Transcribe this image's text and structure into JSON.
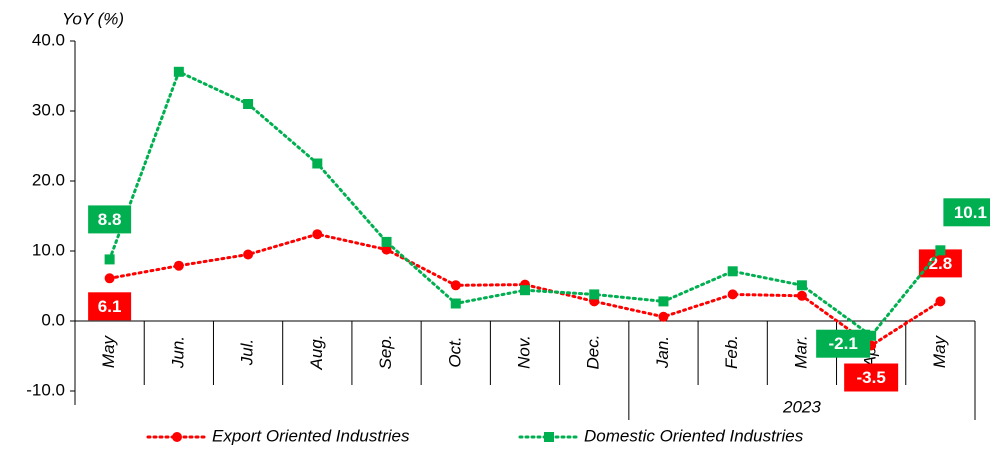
{
  "chart_data": {
    "type": "line",
    "y_label": "YoY (%)",
    "categories": [
      "May",
      "Jun.",
      "Jul.",
      "Aug.",
      "Sep.",
      "Oct.",
      "Nov.",
      "Dec.",
      "Jan.",
      "Feb.",
      "Mar.",
      "Apr.",
      "May"
    ],
    "group_label": "2023",
    "series": [
      {
        "name": "Export Oriented Industries",
        "color": "#ff0000",
        "marker": "circle",
        "values": [
          6.1,
          7.9,
          9.5,
          12.4,
          10.2,
          5.1,
          5.2,
          2.8,
          0.6,
          3.8,
          3.6,
          -3.5,
          2.8
        ],
        "value_labels": [
          "6.1",
          null,
          null,
          null,
          null,
          null,
          null,
          null,
          null,
          null,
          null,
          "-3.5",
          "2.8"
        ]
      },
      {
        "name": "Domestic Oriented Industries",
        "color": "#00b050",
        "marker": "square",
        "values": [
          8.8,
          35.6,
          31.0,
          22.5,
          11.3,
          2.5,
          4.4,
          3.8,
          2.8,
          7.1,
          5.1,
          -2.1,
          10.1
        ],
        "value_labels": [
          "8.8",
          null,
          null,
          null,
          null,
          null,
          null,
          null,
          null,
          null,
          null,
          "-2.1",
          "10.1"
        ]
      }
    ],
    "ylim": [
      -12,
      40
    ],
    "yticks": [
      {
        "value": -10,
        "label": "-10.0"
      },
      {
        "value": 0,
        "label": "0.0"
      },
      {
        "value": 10,
        "label": "10.0"
      },
      {
        "value": 20,
        "label": "20.0"
      },
      {
        "value": 30,
        "label": "30.0"
      },
      {
        "value": 40,
        "label": "40.0"
      }
    ],
    "legend": "bottom"
  }
}
